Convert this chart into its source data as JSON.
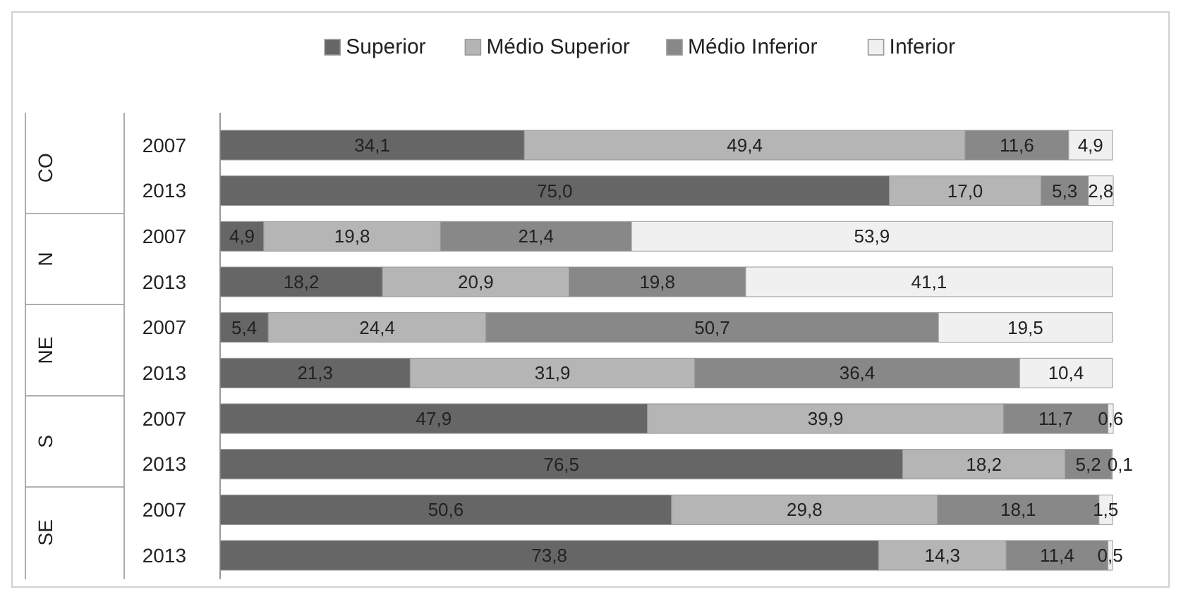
{
  "chart_data": {
    "type": "bar",
    "orientation": "horizontal",
    "stacked": true,
    "legend": "top",
    "categories": [
      "2007",
      "2013",
      "2007",
      "2013",
      "2007",
      "2013",
      "2007",
      "2013",
      "2007",
      "2013"
    ],
    "annotations": [
      "CO",
      "N",
      "NE",
      "S",
      "SE"
    ],
    "series": [
      {
        "name": "Superior",
        "color": "#666666",
        "values": [
          34.1,
          75.0,
          4.9,
          18.2,
          5.4,
          21.3,
          47.9,
          76.5,
          50.6,
          73.8
        ],
        "value_labels": [
          "34,1",
          "75,0",
          "4,9",
          "18,2",
          "5,4",
          "21,3",
          "47,9",
          "76,5",
          "50,6",
          "73,8"
        ]
      },
      {
        "name": "Médio Superior",
        "color": "#b5b5b5",
        "values": [
          49.4,
          17.0,
          19.8,
          20.9,
          24.4,
          31.9,
          39.9,
          18.2,
          29.8,
          14.3
        ],
        "value_labels": [
          "49,4",
          "17,0",
          "19,8",
          "20,9",
          "24,4",
          "31,9",
          "39,9",
          "18,2",
          "29,8",
          "14,3"
        ]
      },
      {
        "name": "Médio Inferior",
        "color": "#888888",
        "values": [
          11.6,
          5.3,
          21.4,
          19.8,
          50.7,
          36.4,
          11.7,
          5.2,
          18.1,
          11.4
        ],
        "value_labels": [
          "11,6",
          "5,3",
          "21,4",
          "19,8",
          "50,7",
          "36,4",
          "11,7",
          "5,2",
          "18,1",
          "11,4"
        ]
      },
      {
        "name": "Inferior",
        "color": "#f0f0f0",
        "values": [
          4.9,
          2.8,
          53.9,
          41.1,
          19.5,
          10.4,
          0.6,
          0.1,
          1.5,
          0.5
        ],
        "value_labels": [
          "4,9",
          "2,8",
          "53,9",
          "41,1",
          "19,5",
          "10,4",
          "0,6",
          "0,1",
          "1,5",
          "0,5"
        ]
      }
    ]
  }
}
